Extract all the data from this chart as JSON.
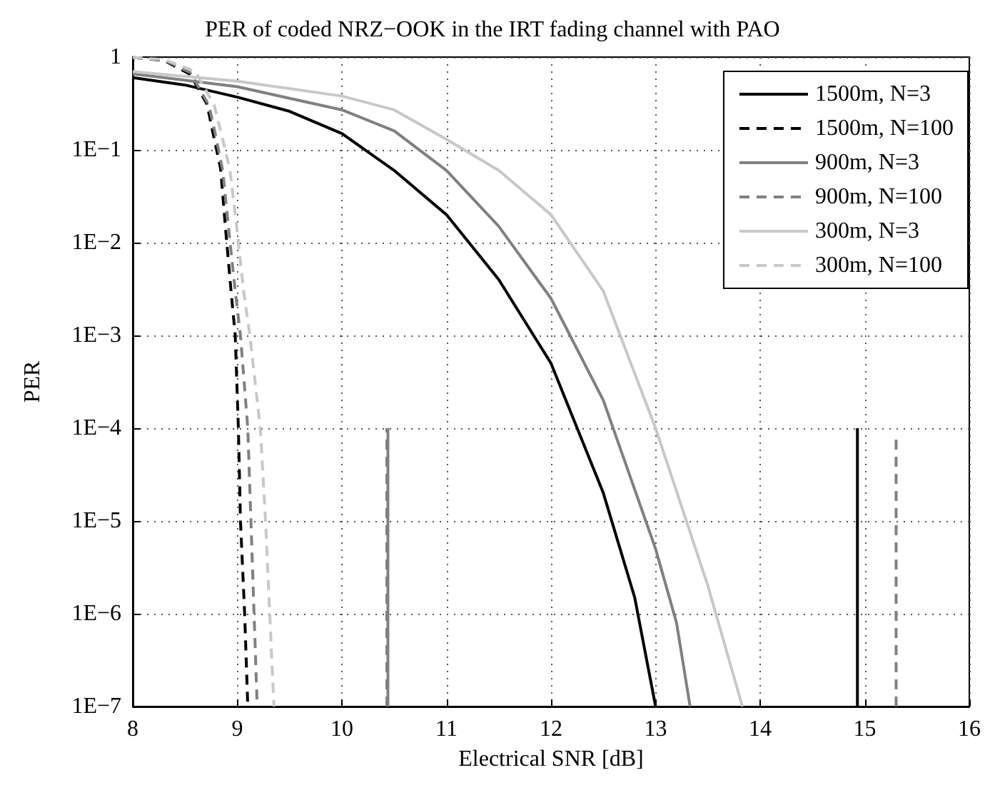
{
  "chart_data": {
    "type": "line",
    "title": "PER of coded NRZ−OOK in the IRT fading channel with PAO",
    "xlabel": "Electrical SNR [dB]",
    "ylabel": "PER",
    "log": "y",
    "grid": true,
    "legend": "top right",
    "marker": "none",
    "xlim": [
      8,
      16
    ],
    "xticks": [
      8,
      9,
      10,
      11,
      12,
      13,
      14,
      15,
      16
    ],
    "ylim": [
      1e-07,
      1
    ],
    "yticks": [
      {
        "value": 1e-07,
        "label": "1E−7"
      },
      {
        "value": 1e-06,
        "label": "1E−6"
      },
      {
        "value": 1e-05,
        "label": "1E−5"
      },
      {
        "value": 0.0001,
        "label": "1E−4"
      },
      {
        "value": 0.001,
        "label": "1E−3"
      },
      {
        "value": 0.01,
        "label": "1E−2"
      },
      {
        "value": 0.1,
        "label": "1E−1"
      },
      1
    ],
    "series": [
      {
        "name": "1500m, N=3",
        "color": "#000000",
        "line_style": "solid",
        "x": [
          8,
          8.5,
          9,
          9.5,
          10,
          10.5,
          11,
          11.5,
          12,
          12.5,
          12.8,
          13.0
        ],
        "values": [
          0.6,
          0.5,
          0.37,
          0.26,
          0.15,
          0.06,
          0.02,
          0.004,
          0.0005,
          2e-05,
          1.5e-06,
          1e-07
        ]
      },
      {
        "name": "1500m, N=100",
        "color": "#000000",
        "line_style": "dashed",
        "x": [
          8,
          8.3,
          8.55,
          8.71,
          8.78,
          8.84,
          8.89,
          8.94,
          8.98,
          9.01,
          9.03,
          9.07,
          9.1
        ],
        "values": [
          0.99,
          0.92,
          0.65,
          0.31,
          0.13,
          0.063,
          0.013,
          0.003,
          0.001,
          0.0001,
          1e-05,
          1e-06,
          1e-07
        ]
      },
      {
        "name": "900m, N=3",
        "color": "#808080",
        "line_style": "solid",
        "x": [
          8,
          9,
          10,
          10.5,
          11,
          11.5,
          12,
          12.5,
          13,
          13.2,
          13.33
        ],
        "values": [
          0.66,
          0.48,
          0.27,
          0.16,
          0.06,
          0.015,
          0.0025,
          0.0002,
          5e-06,
          8e-07,
          1e-07
        ]
      },
      {
        "name": "900m, N=100",
        "color": "#808080",
        "line_style": "dashed",
        "x": [
          8,
          8.3,
          8.55,
          8.73,
          8.8,
          8.86,
          8.92,
          8.98,
          9.03,
          9.1,
          9.13,
          9.16,
          9.19
        ],
        "values": [
          0.99,
          0.93,
          0.68,
          0.3,
          0.13,
          0.06,
          0.013,
          0.003,
          0.001,
          0.0001,
          1e-05,
          1e-06,
          1e-07
        ]
      },
      {
        "name": "300m, N=3",
        "color": "#c8c8c8",
        "line_style": "solid",
        "x": [
          8,
          9,
          10,
          10.5,
          11,
          11.5,
          12,
          12.5,
          13,
          13.5,
          13.83
        ],
        "values": [
          0.7,
          0.55,
          0.38,
          0.27,
          0.13,
          0.06,
          0.02,
          0.003,
          0.0001,
          2e-06,
          1e-07
        ]
      },
      {
        "name": "300m, N=100",
        "color": "#c8c8c8",
        "line_style": "dashed",
        "x": [
          8,
          8.3,
          8.6,
          8.78,
          8.86,
          8.93,
          9.0,
          9.06,
          9.12,
          9.22,
          9.27,
          9.31,
          9.35
        ],
        "values": [
          0.99,
          0.94,
          0.7,
          0.3,
          0.13,
          0.06,
          0.013,
          0.003,
          0.001,
          0.0001,
          1e-05,
          1e-06,
          1e-07
        ]
      },
      {
        "color": "#808080",
        "line_style": "solid",
        "x": [
          10.44,
          10.44
        ],
        "values": [
          1e-07,
          0.0001
        ]
      },
      {
        "color": "#808080",
        "line_style": "dashed",
        "x": [
          10.43,
          10.43
        ],
        "values": [
          1e-07,
          0.0001
        ]
      },
      {
        "color": "#000000",
        "line_style": "solid",
        "x": [
          14.93,
          14.93
        ],
        "values": [
          1e-07,
          0.0001
        ]
      },
      {
        "color": "#808080",
        "line_style": "dashed",
        "x": [
          15.3,
          15.3
        ],
        "values": [
          1e-07,
          8e-05
        ]
      }
    ]
  }
}
